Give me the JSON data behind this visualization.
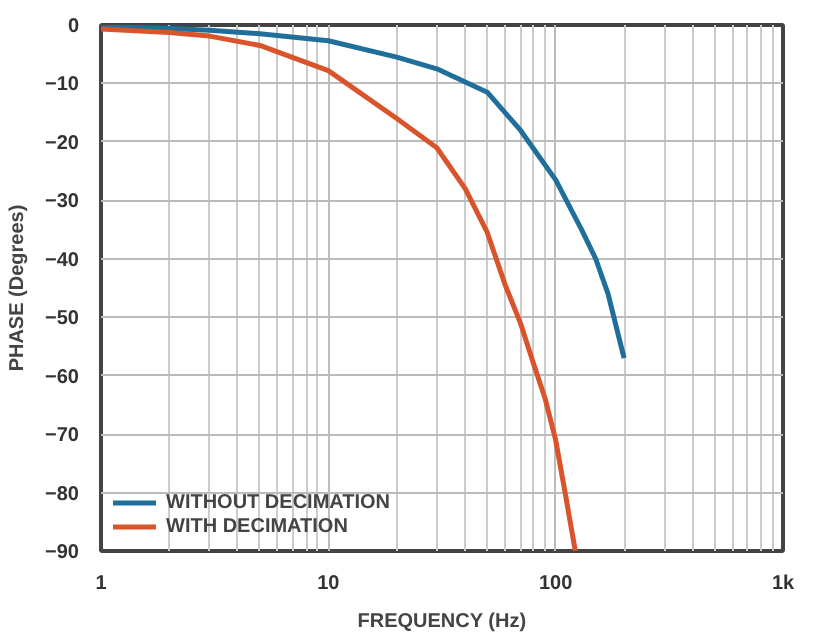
{
  "chart_data": {
    "type": "line",
    "xlabel": "FREQUENCY (Hz)",
    "ylabel": "PHASE (Degrees)",
    "log": "x",
    "grid": true,
    "legend": "bottom left",
    "line_style": "solid",
    "marker": "none",
    "xlim": [
      1,
      1000
    ],
    "ylim": [
      -90,
      0
    ],
    "xticks": [
      1,
      10,
      100,
      {
        "value": 1000,
        "label": "1k"
      }
    ],
    "yticks": [
      0,
      -10,
      -20,
      -30,
      -40,
      -50,
      -60,
      -70,
      -80,
      -90
    ],
    "series": [
      {
        "name": "WITHOUT DECIMATION",
        "color": "#1f6f9a",
        "x": [
          1,
          2,
          3,
          5,
          10,
          20,
          30,
          50,
          70,
          100,
          130,
          150,
          170,
          200
        ],
        "values": [
          -0.3,
          -0.6,
          -0.9,
          -1.5,
          -2.7,
          -5.5,
          -7.5,
          -11.5,
          -18,
          -26.5,
          -35,
          -40,
          -46,
          -57
        ]
      },
      {
        "name": "WITH DECIMATION",
        "color": "#d9532b",
        "x": [
          1,
          2,
          3,
          5,
          10,
          20,
          30,
          40,
          50,
          60,
          70,
          80,
          90,
          100,
          110,
          122
        ],
        "values": [
          -0.7,
          -1.3,
          -1.9,
          -3.5,
          -7.8,
          -16,
          -21,
          -28,
          -35.5,
          -44.5,
          -51,
          -58,
          -64,
          -71,
          -80,
          -90
        ]
      }
    ]
  }
}
